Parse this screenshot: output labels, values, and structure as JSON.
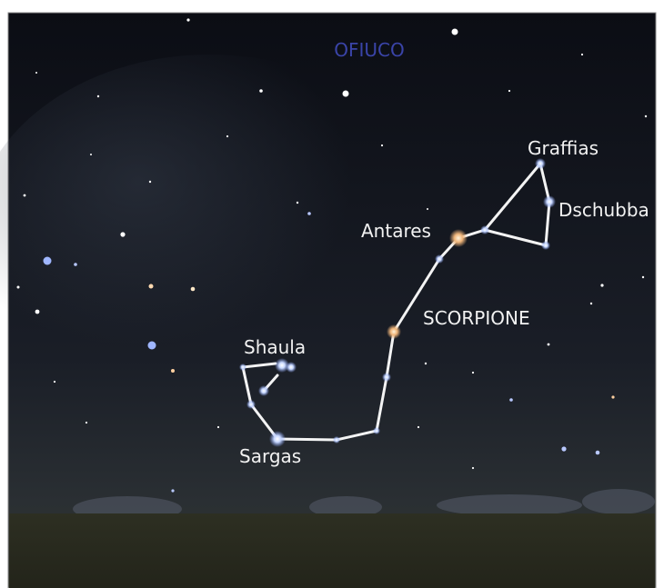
{
  "constellations": [
    {
      "name": "OFIUCO"
    },
    {
      "name": "SCORPIONE"
    }
  ],
  "stars": [
    {
      "name": "Graffias"
    },
    {
      "name": "Dschubba"
    },
    {
      "name": "Antares"
    },
    {
      "name": "Shaula"
    },
    {
      "name": "Sargas"
    }
  ]
}
